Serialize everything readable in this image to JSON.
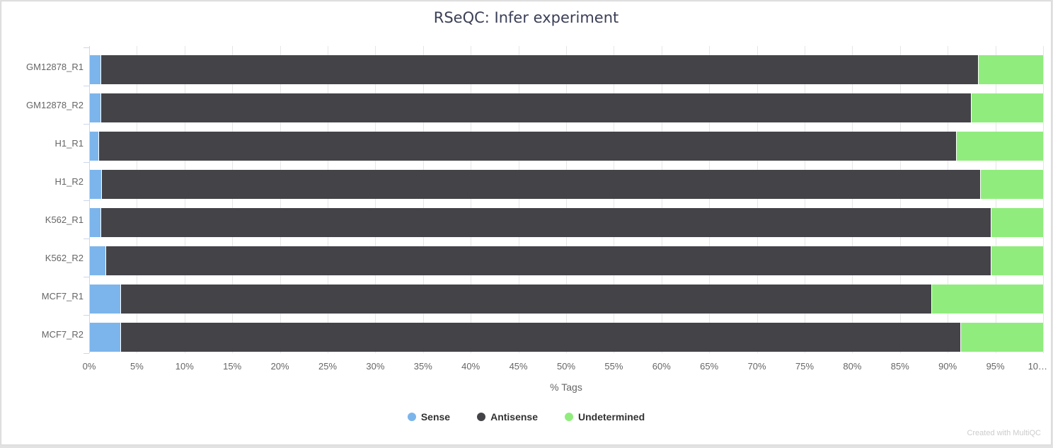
{
  "chart_data": {
    "type": "bar",
    "orientation": "horizontal",
    "stacked": true,
    "title": "RSeQC: Infer experiment",
    "xlabel": "% Tags",
    "xlim": [
      0,
      100
    ],
    "grid": true,
    "legend_position": "bottom",
    "categories": [
      "GM12878_R1",
      "GM12878_R2",
      "H1_R1",
      "H1_R2",
      "K562_R1",
      "K562_R2",
      "MCF7_R1",
      "MCF7_R2"
    ],
    "series": [
      {
        "name": "Sense",
        "color": "#7cb5ec",
        "values": [
          1.1,
          1.1,
          0.9,
          1.2,
          1.1,
          1.6,
          3.2,
          3.2
        ]
      },
      {
        "name": "Antisense",
        "color": "#434348",
        "values": [
          92.1,
          91.3,
          90.0,
          92.2,
          93.4,
          92.9,
          85.1,
          88.1
        ]
      },
      {
        "name": "Undetermined",
        "color": "#90ed7d",
        "values": [
          6.8,
          7.6,
          9.1,
          6.6,
          5.5,
          5.5,
          11.7,
          8.7
        ]
      }
    ],
    "xticks_percent": [
      0,
      5,
      10,
      15,
      20,
      25,
      30,
      35,
      40,
      45,
      50,
      55,
      60,
      65,
      70,
      75,
      80,
      85,
      90,
      95,
      100
    ],
    "xtick_labels": [
      "0%",
      "5%",
      "10%",
      "15%",
      "20%",
      "25%",
      "30%",
      "35%",
      "40%",
      "45%",
      "50%",
      "55%",
      "60%",
      "65%",
      "70%",
      "75%",
      "80%",
      "85%",
      "90%",
      "95%",
      "10…"
    ]
  },
  "footer": {
    "credit": "Created with MultiQC"
  },
  "colors": {
    "axis_line": "#ccd6eb",
    "grid_line": "#e6e6e6",
    "tick_text": "#666666",
    "title_text": "#3a3f56",
    "legend_text": "#333333",
    "credit_text": "#cccccc",
    "card_background": "#ffffff",
    "card_border": "#d8d8d8"
  }
}
